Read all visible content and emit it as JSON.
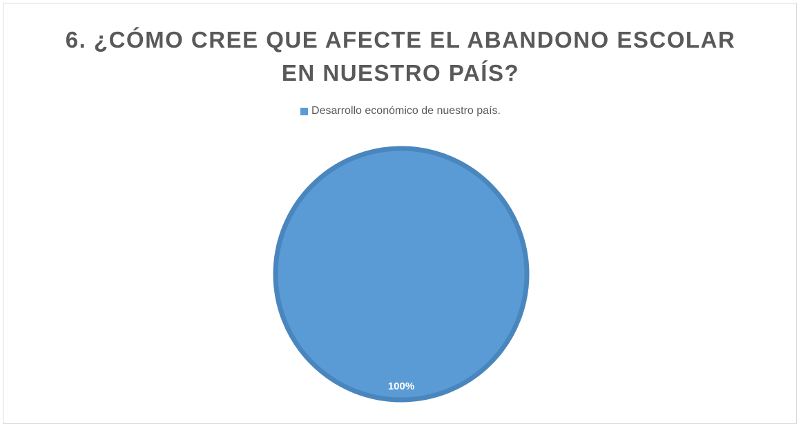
{
  "chart_data": {
    "type": "pie",
    "title_lines": [
      "6. ¿CÓMO CREE QUE AFECTE EL ABANDONO ESCOLAR",
      "EN NUESTRO PAÍS?"
    ],
    "categories": [
      "Desarrollo económico de nuestro país."
    ],
    "values": [
      100
    ],
    "data_labels": [
      "100%"
    ],
    "colors": [
      "#5b9bd5"
    ],
    "legend_position": "top"
  }
}
